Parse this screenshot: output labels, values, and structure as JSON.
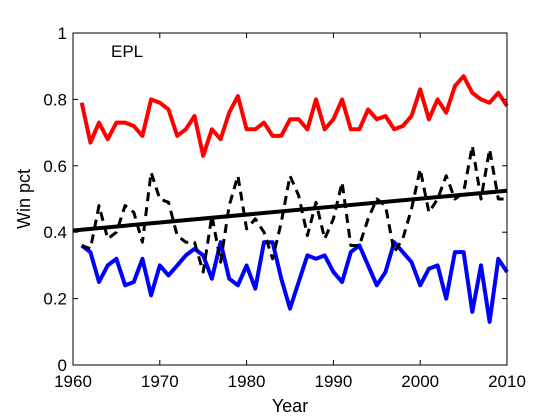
{
  "chart_data": {
    "type": "line",
    "title": "",
    "annotation": "EPL",
    "xlabel": "Year",
    "ylabel": "Win pct",
    "xlim": [
      1960,
      2010
    ],
    "ylim": [
      0,
      1
    ],
    "xticks": [
      "1960",
      "1970",
      "1980",
      "1990",
      "2000",
      "2010"
    ],
    "yticks": [
      "0",
      "0.2",
      "0.4",
      "0.6",
      "0.8",
      "1"
    ],
    "grid": false,
    "legend": "none",
    "x": [
      1961,
      1962,
      1963,
      1964,
      1965,
      1966,
      1967,
      1968,
      1969,
      1970,
      1971,
      1972,
      1973,
      1974,
      1975,
      1976,
      1977,
      1978,
      1979,
      1980,
      1981,
      1982,
      1983,
      1984,
      1985,
      1986,
      1987,
      1988,
      1989,
      1990,
      1991,
      1992,
      1993,
      1994,
      1995,
      1996,
      1997,
      1998,
      1999,
      2000,
      2001,
      2002,
      2003,
      2004,
      2005,
      2006,
      2007,
      2008,
      2009,
      2010
    ],
    "series": [
      {
        "style": "solid-red",
        "color": "#ff0000",
        "values": [
          0.79,
          0.67,
          0.73,
          0.68,
          0.73,
          0.73,
          0.72,
          0.69,
          0.8,
          0.79,
          0.77,
          0.69,
          0.71,
          0.75,
          0.63,
          0.71,
          0.68,
          0.76,
          0.81,
          0.71,
          0.71,
          0.73,
          0.69,
          0.69,
          0.74,
          0.74,
          0.71,
          0.8,
          0.71,
          0.74,
          0.8,
          0.71,
          0.71,
          0.77,
          0.74,
          0.75,
          0.71,
          0.72,
          0.75,
          0.83,
          0.74,
          0.8,
          0.76,
          0.84,
          0.87,
          0.82,
          0.8,
          0.79,
          0.82,
          0.78
        ]
      },
      {
        "style": "solid-blue",
        "color": "#0000ff",
        "values": [
          0.36,
          0.34,
          0.25,
          0.3,
          0.32,
          0.24,
          0.25,
          0.32,
          0.21,
          0.3,
          0.27,
          0.3,
          0.33,
          0.35,
          0.33,
          0.26,
          0.37,
          0.26,
          0.24,
          0.3,
          0.23,
          0.37,
          0.37,
          0.26,
          0.17,
          0.25,
          0.33,
          0.32,
          0.33,
          0.28,
          0.25,
          0.34,
          0.36,
          0.3,
          0.24,
          0.28,
          0.37,
          0.34,
          0.31,
          0.24,
          0.29,
          0.3,
          0.2,
          0.34,
          0.34,
          0.16,
          0.3,
          0.13,
          0.32,
          0.28
        ]
      },
      {
        "style": "dashed-black",
        "color": "#000000",
        "values": [
          0.36,
          0.35,
          0.48,
          0.38,
          0.4,
          0.48,
          0.46,
          0.37,
          0.58,
          0.5,
          0.49,
          0.39,
          0.37,
          0.37,
          0.28,
          0.45,
          0.31,
          0.48,
          0.57,
          0.41,
          0.44,
          0.4,
          0.32,
          0.43,
          0.57,
          0.51,
          0.39,
          0.49,
          0.38,
          0.44,
          0.55,
          0.36,
          0.36,
          0.44,
          0.5,
          0.48,
          0.34,
          0.38,
          0.47,
          0.59,
          0.46,
          0.5,
          0.57,
          0.5,
          0.52,
          0.66,
          0.5,
          0.65,
          0.5,
          0.5
        ]
      },
      {
        "style": "trend-black",
        "color": "#000000",
        "x": [
          1960,
          2010
        ],
        "values": [
          0.405,
          0.525
        ]
      }
    ]
  }
}
